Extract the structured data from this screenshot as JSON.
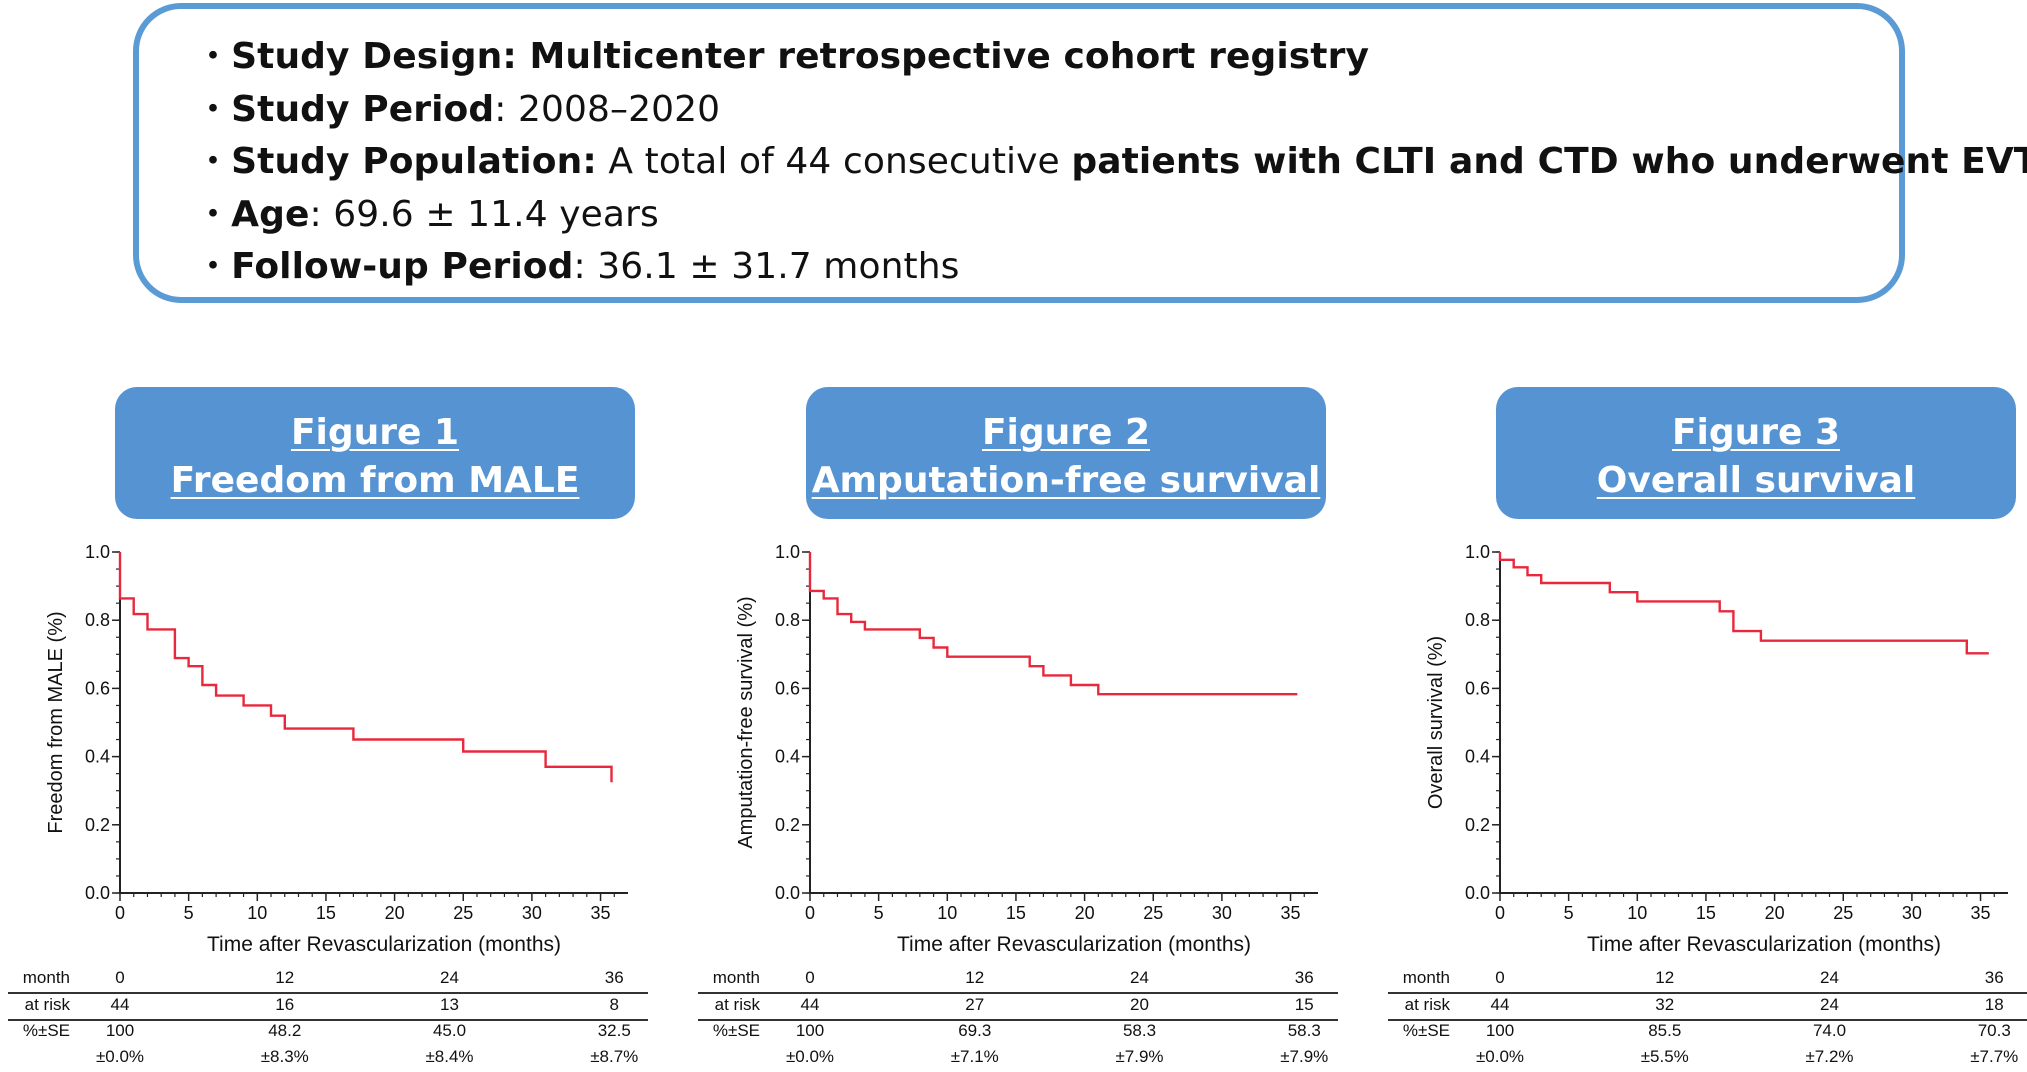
{
  "summary": [
    {
      "label": "Study Design",
      "label_suffix": ":",
      "value": " Multicenter retrospective cohort registry",
      "value_bold": true
    },
    {
      "label": "Study Period",
      "label_suffix": ":",
      "value": " 2008–2020",
      "value_bold": false
    },
    {
      "label": "Study Population",
      "label_suffix": ":",
      "value": " A total of 44 consecutive ",
      "value_bold": false,
      "value2": "patients with CLTI and CTD who underwent EVT"
    },
    {
      "label": "Age",
      "label_suffix": ":",
      "value": " 69.6 ± 11.4 years",
      "value_bold": false
    },
    {
      "label": "Follow-up Period",
      "label_suffix": ":",
      "value": " 36.1 ± 31.7 months",
      "value_bold": false
    }
  ],
  "bullet": "・",
  "colors": {
    "box_border": "#5b9bd5",
    "header_bg": "#5593d3",
    "curve": "#e8283c",
    "axis": "#222222"
  },
  "chart_data": [
    {
      "type": "line",
      "figure_label": "Figure 1",
      "title": "Freedom from MALE",
      "xlabel": "Time after Revascularization (months)",
      "ylabel": "Freedom from MALE (%)",
      "xlim": [
        0,
        37
      ],
      "ylim": [
        0,
        1.0
      ],
      "xticks": [
        0,
        5,
        10,
        15,
        20,
        25,
        30,
        35
      ],
      "yticks": [
        "0.0",
        "0.2",
        "0.4",
        "0.6",
        "0.8",
        "1.0"
      ],
      "step_points": [
        [
          0,
          1.0
        ],
        [
          0,
          0.864
        ],
        [
          1,
          0.864
        ],
        [
          1,
          0.818
        ],
        [
          2,
          0.818
        ],
        [
          2,
          0.773
        ],
        [
          4,
          0.773
        ],
        [
          4,
          0.689
        ],
        [
          5,
          0.689
        ],
        [
          5,
          0.665
        ],
        [
          6,
          0.665
        ],
        [
          6,
          0.61
        ],
        [
          7,
          0.61
        ],
        [
          7,
          0.579
        ],
        [
          9,
          0.579
        ],
        [
          9,
          0.55
        ],
        [
          11,
          0.55
        ],
        [
          11,
          0.52
        ],
        [
          12,
          0.52
        ],
        [
          12,
          0.482
        ],
        [
          17,
          0.482
        ],
        [
          17,
          0.45
        ],
        [
          25,
          0.45
        ],
        [
          25,
          0.415
        ],
        [
          31,
          0.415
        ],
        [
          31,
          0.37
        ],
        [
          35.8,
          0.37
        ],
        [
          35.8,
          0.325
        ]
      ],
      "risk_table": {
        "labels": [
          "month",
          "at risk",
          "%±SE"
        ],
        "months": [
          "0",
          "12",
          "24",
          "36"
        ],
        "at_risk": [
          "44",
          "16",
          "13",
          "8"
        ],
        "pct": [
          "100",
          "48.2",
          "45.0",
          "32.5"
        ],
        "se": [
          "±0.0%",
          "±8.3%",
          "±8.4%",
          "±8.7%"
        ]
      }
    },
    {
      "type": "line",
      "figure_label": "Figure 2",
      "title": "Amputation-free survival",
      "xlabel": "Time after Revascularization (months)",
      "ylabel": "Amputation-free survival (%)",
      "xlim": [
        0,
        37
      ],
      "ylim": [
        0,
        1.0
      ],
      "xticks": [
        0,
        5,
        10,
        15,
        20,
        25,
        30,
        35
      ],
      "yticks": [
        "0.0",
        "0.2",
        "0.4",
        "0.6",
        "0.8",
        "1.0"
      ],
      "step_points": [
        [
          0,
          1.0
        ],
        [
          0,
          0.886
        ],
        [
          1,
          0.886
        ],
        [
          1,
          0.864
        ],
        [
          2,
          0.864
        ],
        [
          2,
          0.818
        ],
        [
          3,
          0.818
        ],
        [
          3,
          0.795
        ],
        [
          4,
          0.795
        ],
        [
          4,
          0.773
        ],
        [
          8,
          0.773
        ],
        [
          8,
          0.748
        ],
        [
          9,
          0.748
        ],
        [
          9,
          0.72
        ],
        [
          10,
          0.72
        ],
        [
          10,
          0.693
        ],
        [
          16,
          0.693
        ],
        [
          16,
          0.665
        ],
        [
          17,
          0.665
        ],
        [
          17,
          0.638
        ],
        [
          19,
          0.638
        ],
        [
          19,
          0.61
        ],
        [
          21,
          0.61
        ],
        [
          21,
          0.583
        ],
        [
          35.5,
          0.583
        ]
      ],
      "risk_table": {
        "labels": [
          "month",
          "at risk",
          "%±SE"
        ],
        "months": [
          "0",
          "12",
          "24",
          "36"
        ],
        "at_risk": [
          "44",
          "27",
          "20",
          "15"
        ],
        "pct": [
          "100",
          "69.3",
          "58.3",
          "58.3"
        ],
        "se": [
          "±0.0%",
          "±7.1%",
          "±7.9%",
          "±7.9%"
        ]
      }
    },
    {
      "type": "line",
      "figure_label": "Figure 3",
      "title": "Overall survival",
      "xlabel": "Time after Revascularization (months)",
      "ylabel": "Overall survival (%)",
      "xlim": [
        0,
        37
      ],
      "ylim": [
        0,
        1.0
      ],
      "xticks": [
        0,
        5,
        10,
        15,
        20,
        25,
        30,
        35
      ],
      "yticks": [
        "0.0",
        "0.2",
        "0.4",
        "0.6",
        "0.8",
        "1.0"
      ],
      "step_points": [
        [
          0,
          1.0
        ],
        [
          0,
          0.977
        ],
        [
          1,
          0.977
        ],
        [
          1,
          0.955
        ],
        [
          2,
          0.955
        ],
        [
          2,
          0.932
        ],
        [
          3,
          0.932
        ],
        [
          3,
          0.909
        ],
        [
          8,
          0.909
        ],
        [
          8,
          0.882
        ],
        [
          10,
          0.882
        ],
        [
          10,
          0.855
        ],
        [
          16,
          0.855
        ],
        [
          16,
          0.826
        ],
        [
          17,
          0.826
        ],
        [
          17,
          0.768
        ],
        [
          19,
          0.768
        ],
        [
          19,
          0.74
        ],
        [
          34,
          0.74
        ],
        [
          34,
          0.703
        ],
        [
          35.6,
          0.703
        ]
      ],
      "risk_table": {
        "labels": [
          "month",
          "at risk",
          "%±SE"
        ],
        "months": [
          "0",
          "12",
          "24",
          "36"
        ],
        "at_risk": [
          "44",
          "32",
          "24",
          "18"
        ],
        "pct": [
          "100",
          "85.5",
          "74.0",
          "70.3"
        ],
        "se": [
          "±0.0%",
          "±5.5%",
          "±7.2%",
          "±7.7%"
        ]
      }
    }
  ]
}
